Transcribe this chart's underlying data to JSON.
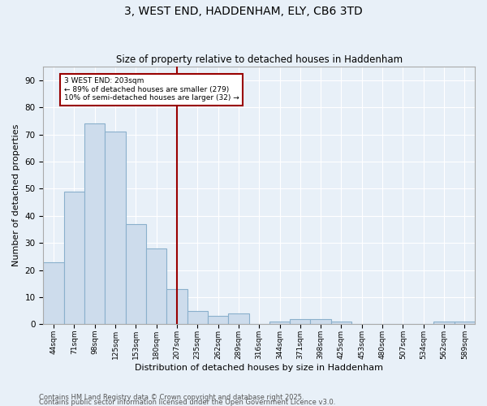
{
  "title1": "3, WEST END, HADDENHAM, ELY, CB6 3TD",
  "title2": "Size of property relative to detached houses in Haddenham",
  "xlabel": "Distribution of detached houses by size in Haddenham",
  "ylabel": "Number of detached properties",
  "categories": [
    "44sqm",
    "71sqm",
    "98sqm",
    "125sqm",
    "153sqm",
    "180sqm",
    "207sqm",
    "235sqm",
    "262sqm",
    "289sqm",
    "316sqm",
    "344sqm",
    "371sqm",
    "398sqm",
    "425sqm",
    "453sqm",
    "480sqm",
    "507sqm",
    "534sqm",
    "562sqm",
    "589sqm"
  ],
  "values": [
    23,
    49,
    74,
    71,
    37,
    28,
    13,
    5,
    3,
    4,
    0,
    1,
    2,
    2,
    1,
    0,
    0,
    0,
    0,
    1,
    1
  ],
  "bar_color": "#cddcec",
  "bar_edge_color": "#8ab0cc",
  "bg_color": "#e8f0f8",
  "vline_x_index": 6,
  "vline_color": "#990000",
  "annotation_text": "3 WEST END: 203sqm\n← 89% of detached houses are smaller (279)\n10% of semi-detached houses are larger (32) →",
  "annotation_box_color": "#ffffff",
  "annotation_box_edge_color": "#990000",
  "ylim": [
    0,
    95
  ],
  "yticks": [
    0,
    10,
    20,
    30,
    40,
    50,
    60,
    70,
    80,
    90
  ],
  "footer1": "Contains HM Land Registry data © Crown copyright and database right 2025.",
  "footer2": "Contains public sector information licensed under the Open Government Licence v3.0."
}
